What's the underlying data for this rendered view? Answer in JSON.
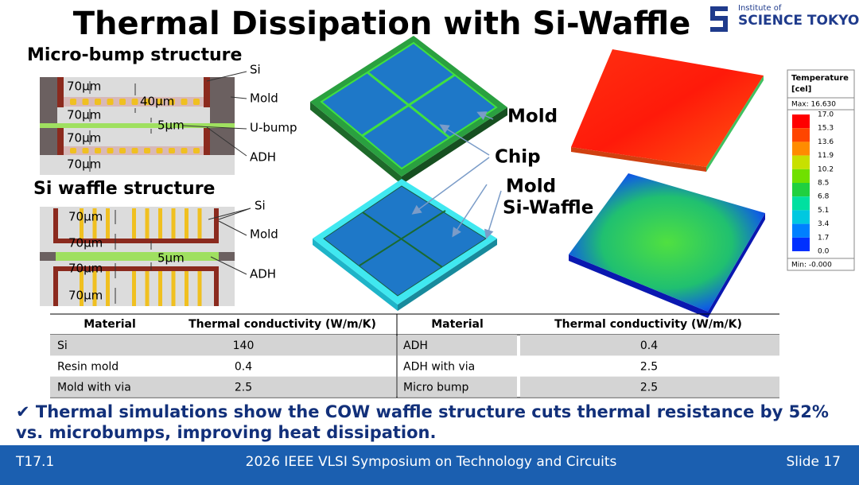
{
  "header": {
    "title": "Thermal Dissipation with Si-Waffle"
  },
  "logo": {
    "line1": "Institute of",
    "line2": "SCIENCE TOKYO"
  },
  "micro_bump": {
    "title": "Micro-bump structure",
    "dims": [
      "70µm",
      "40µm",
      "70µm",
      "5µm",
      "70µm",
      "70µm"
    ],
    "callouts": [
      "Si",
      "Mold",
      "U-bump",
      "ADH"
    ]
  },
  "si_waffle": {
    "title": "Si waffle structure",
    "dims": [
      "70µm",
      "70µm",
      "5µm",
      "70µm",
      "70µm"
    ],
    "callouts": [
      "Si",
      "Mold",
      "ADH"
    ]
  },
  "model_labels": [
    "Mold",
    "Chip",
    "Mold",
    "Si-Waffle"
  ],
  "legend": {
    "title": "Temperature",
    "unit": "[cel]",
    "max": "Max: 16.630",
    "levels": [
      "17.0",
      "15.3",
      "13.6",
      "11.9",
      "10.2",
      "8.5",
      "6.8",
      "5.1",
      "3.4",
      "1.7",
      "0.0"
    ],
    "min": "Min: -0.000"
  },
  "table": {
    "headers": [
      "Material",
      "Thermal conductivity (W/m/K)",
      "Material",
      "Thermal conductivity (W/m/K)"
    ],
    "rows": [
      [
        "Si",
        "140",
        "ADH",
        "0.4"
      ],
      [
        "Resin mold",
        "0.4",
        "ADH with via",
        "2.5"
      ],
      [
        "Mold with via",
        "2.5",
        "Micro bump",
        "2.5"
      ]
    ]
  },
  "conclusion": {
    "line1": "✔ Thermal simulations show the COW waffle structure cuts thermal resistance by 52%",
    "line2": "vs. microbumps, improving heat dissipation."
  },
  "footer": {
    "left": "T17.1",
    "center": "2026 IEEE VLSI Symposium on Technology and Circuits",
    "right": "Slide 17"
  }
}
